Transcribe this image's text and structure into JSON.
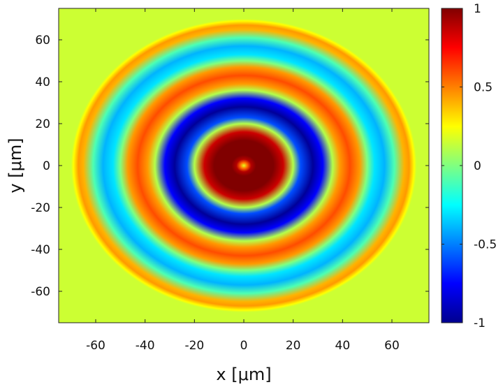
{
  "chart_data": {
    "type": "heatmap",
    "title": "",
    "xlabel": "x [μm]",
    "ylabel": "y [μm]",
    "xlim": [
      -75,
      75
    ],
    "ylim": [
      -75,
      75
    ],
    "x_ticks": [
      -60,
      -40,
      -20,
      0,
      20,
      40,
      60
    ],
    "y_ticks": [
      -60,
      -40,
      -20,
      0,
      20,
      40,
      60
    ],
    "x_tick_labels": [
      "-60",
      "-40",
      "-20",
      "0",
      "20",
      "40",
      "60"
    ],
    "y_tick_labels": [
      "-60",
      "-40",
      "-20",
      "0",
      "20",
      "40",
      "60"
    ],
    "colorbar": {
      "min": -1,
      "max": 1,
      "ticks": [
        1,
        0.5,
        0,
        -0.5,
        -1
      ],
      "tick_labels": [
        "1",
        "0.5",
        "0",
        "-0.5",
        "-1"
      ],
      "colormap": "jet"
    },
    "field": {
      "description_type": "concentric rings",
      "center": [
        0,
        0
      ],
      "aperture_radius": 70,
      "outside_value": 0.15,
      "radial_profile": [
        {
          "r": 0,
          "v": 0.2
        },
        {
          "r": 1.5,
          "v": 0.55
        },
        {
          "r": 3,
          "v": 0.9
        },
        {
          "r": 5,
          "v": 1.0
        },
        {
          "r": 12,
          "v": 1.0
        },
        {
          "r": 16,
          "v": 0.85
        },
        {
          "r": 20,
          "v": 0.1
        },
        {
          "r": 23,
          "v": -0.6
        },
        {
          "r": 28,
          "v": -0.95
        },
        {
          "r": 32,
          "v": -0.75
        },
        {
          "r": 36,
          "v": 0.1
        },
        {
          "r": 39,
          "v": 0.45
        },
        {
          "r": 43,
          "v": 0.6
        },
        {
          "r": 47,
          "v": 0.45
        },
        {
          "r": 50,
          "v": 0.0
        },
        {
          "r": 53,
          "v": -0.3
        },
        {
          "r": 57,
          "v": -0.4
        },
        {
          "r": 61,
          "v": -0.1
        },
        {
          "r": 65,
          "v": 0.4
        },
        {
          "r": 67,
          "v": 0.45
        },
        {
          "r": 69,
          "v": 0.25
        },
        {
          "r": 70,
          "v": 0.15
        }
      ]
    }
  }
}
